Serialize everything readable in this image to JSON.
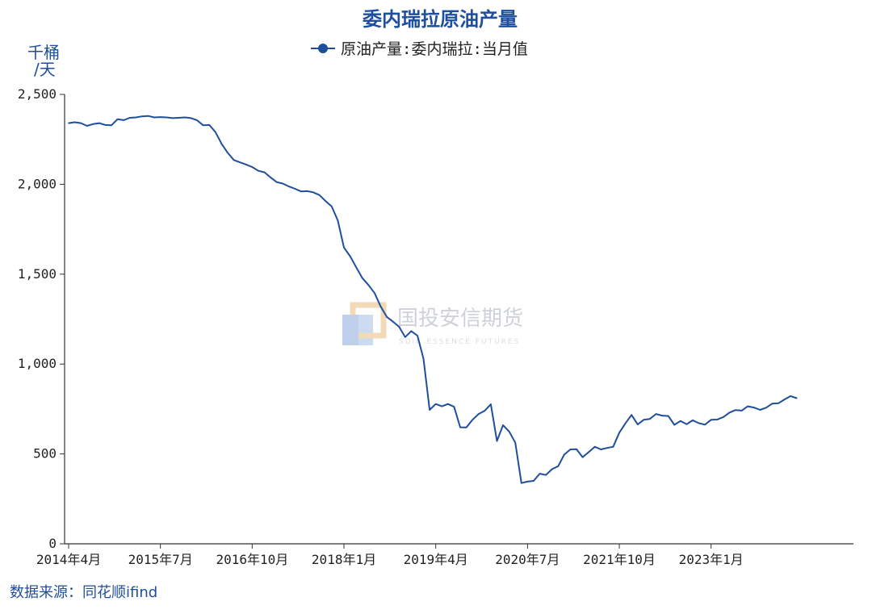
{
  "chart_data": {
    "type": "line",
    "title": "委内瑞拉原油产量",
    "ylabel": "千桶/天",
    "ylabel_lines": [
      "千桶",
      "/天"
    ],
    "ylim": [
      0,
      2500
    ],
    "yticks": [
      0,
      500,
      1000,
      1500,
      2000,
      2500
    ],
    "ytick_labels": [
      "0",
      "500",
      "1,000",
      "1,500",
      "2,000",
      "2,500"
    ],
    "x_range": [
      "2014-04",
      "2024-12"
    ],
    "xticks": [
      "2014-04",
      "2015-07",
      "2016-10",
      "2018-01",
      "2019-04",
      "2020-07",
      "2021-10",
      "2023-01"
    ],
    "xtick_labels": [
      "2014年4月",
      "2015年7月",
      "2016年10月",
      "2018年1月",
      "2019年4月",
      "2020年7月",
      "2021年10月",
      "2023年1月"
    ],
    "grid": false,
    "legend_position": "top-center",
    "series": [
      {
        "name": "原油产量:委内瑞拉:当月值",
        "color": "#1f4e9c",
        "start": "2014-04",
        "values": [
          2340,
          2345,
          2340,
          2325,
          2335,
          2340,
          2330,
          2328,
          2362,
          2357,
          2370,
          2372,
          2378,
          2380,
          2372,
          2374,
          2372,
          2368,
          2370,
          2372,
          2368,
          2356,
          2328,
          2330,
          2290,
          2225,
          2175,
          2135,
          2122,
          2110,
          2096,
          2075,
          2067,
          2038,
          2012,
          2004,
          1988,
          1975,
          1960,
          1962,
          1955,
          1940,
          1906,
          1876,
          1798,
          1648,
          1600,
          1538,
          1478,
          1440,
          1395,
          1320,
          1262,
          1236,
          1208,
          1150,
          1183,
          1158,
          1030,
          745,
          778,
          765,
          778,
          762,
          648,
          647,
          690,
          722,
          740,
          776,
          572,
          660,
          625,
          563,
          338,
          346,
          350,
          390,
          383,
          415,
          432,
          496,
          525,
          526,
          482,
          510,
          540,
          525,
          533,
          540,
          618,
          670,
          717,
          664,
          690,
          695,
          722,
          713,
          711,
          662,
          683,
          665,
          687,
          671,
          663,
          690,
          691,
          705,
          730,
          744,
          741,
          765,
          758,
          745,
          757,
          780,
          782,
          803,
          822,
          810
        ]
      }
    ]
  },
  "watermark": {
    "name": "国投安信期货",
    "sub": "SDIC ESSENCE FUTURES"
  },
  "source": "数据来源：同花顺ifind",
  "colors": {
    "primary": "#1f4e9c",
    "axis": "#333333"
  }
}
